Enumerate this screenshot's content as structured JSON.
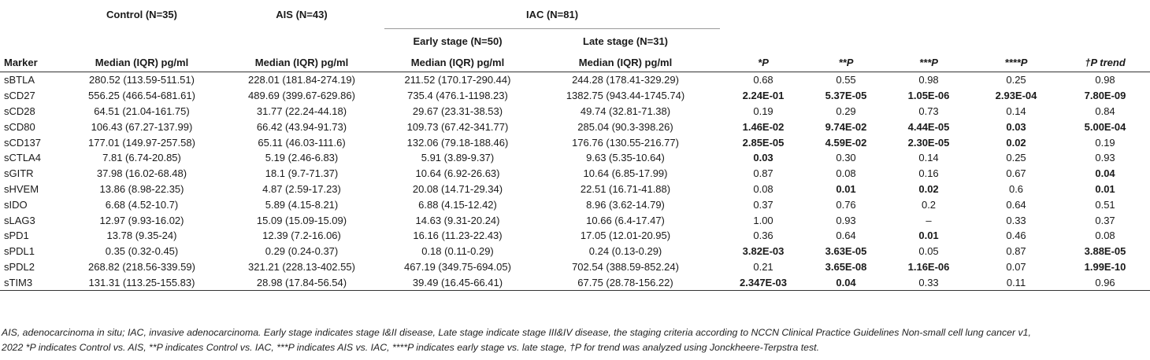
{
  "headers": {
    "control": "Control (N=35)",
    "ais": "AIS (N=43)",
    "iac": "IAC (N=81)",
    "early": "Early stage (N=50)",
    "late": "Late stage (N=31)",
    "marker": "Marker",
    "median": "Median (IQR) pg/ml",
    "p1": "*P",
    "p2": "**P",
    "p3": "***P",
    "p4": "****P",
    "ptrend": "†P trend"
  },
  "rows": [
    {
      "marker": "sBTLA",
      "control": "280.52 (113.59-511.51)",
      "ais": "228.01 (181.84-274.19)",
      "early": "211.52 (170.17-290.44)",
      "late": "244.28 (178.41-329.29)",
      "p1": "0.68",
      "p2": "0.55",
      "p3": "0.98",
      "p4": "0.25",
      "pt": "0.98",
      "bold": []
    },
    {
      "marker": "sCD27",
      "control": "556.25 (466.54-681.61)",
      "ais": "489.69 (399.67-629.86)",
      "early": "735.4 (476.1-1198.23)",
      "late": "1382.75 (943.44-1745.74)",
      "p1": "2.24E-01",
      "p2": "5.37E-05",
      "p3": "1.05E-06",
      "p4": "2.93E-04",
      "pt": "7.80E-09",
      "bold": [
        "p1",
        "p2",
        "p3",
        "p4",
        "pt"
      ]
    },
    {
      "marker": "sCD28",
      "control": "64.51 (21.04-161.75)",
      "ais": "31.77 (22.24-44.18)",
      "early": "29.67 (23.31-38.53)",
      "late": "49.74 (32.81-71.38)",
      "p1": "0.19",
      "p2": "0.29",
      "p3": "0.73",
      "p4": "0.14",
      "pt": "0.84",
      "bold": []
    },
    {
      "marker": "sCD80",
      "control": "106.43 (67.27-137.99)",
      "ais": "66.42 (43.94-91.73)",
      "early": "109.73 (67.42-341.77)",
      "late": "285.04 (90.3-398.26)",
      "p1": "1.46E-02",
      "p2": "9.74E-02",
      "p3": "4.44E-05",
      "p4": "0.03",
      "pt": "5.00E-04",
      "bold": [
        "p1",
        "p2",
        "p3",
        "p4",
        "pt"
      ]
    },
    {
      "marker": "sCD137",
      "control": "177.01 (149.97-257.58)",
      "ais": "65.11 (46.03-111.6)",
      "early": "132.06 (79.18-188.46)",
      "late": "176.76 (130.55-216.77)",
      "p1": "2.85E-05",
      "p2": "4.59E-02",
      "p3": "2.30E-05",
      "p4": "0.02",
      "pt": "0.19",
      "bold": [
        "p1",
        "p2",
        "p3",
        "p4"
      ]
    },
    {
      "marker": "sCTLA4",
      "control": "7.81 (6.74-20.85)",
      "ais": "5.19 (2.46-6.83)",
      "early": "5.91 (3.89-9.37)",
      "late": "9.63 (5.35-10.64)",
      "p1": "0.03",
      "p2": "0.30",
      "p3": "0.14",
      "p4": "0.25",
      "pt": "0.93",
      "bold": [
        "p1"
      ]
    },
    {
      "marker": "sGITR",
      "control": "37.98 (16.02-68.48)",
      "ais": "18.1 (9.7-71.37)",
      "early": "10.64 (6.92-26.63)",
      "late": "10.64 (6.85-17.99)",
      "p1": "0.87",
      "p2": "0.08",
      "p3": "0.16",
      "p4": "0.67",
      "pt": "0.04",
      "bold": [
        "pt"
      ]
    },
    {
      "marker": "sHVEM",
      "control": "13.86 (8.98-22.35)",
      "ais": "4.87 (2.59-17.23)",
      "early": "20.08 (14.71-29.34)",
      "late": "22.51 (16.71-41.88)",
      "p1": "0.08",
      "p2": "0.01",
      "p3": "0.02",
      "p4": "0.6",
      "pt": "0.01",
      "bold": [
        "p2",
        "p3",
        "pt"
      ]
    },
    {
      "marker": "sIDO",
      "control": "6.68 (4.52-10.7)",
      "ais": "5.89 (4.15-8.21)",
      "early": "6.88 (4.15-12.42)",
      "late": "8.96 (3.62-14.79)",
      "p1": "0.37",
      "p2": "0.76",
      "p3": "0.2",
      "p4": "0.64",
      "pt": "0.51",
      "bold": []
    },
    {
      "marker": "sLAG3",
      "control": "12.97 (9.93-16.02)",
      "ais": "15.09 (15.09-15.09)",
      "early": "14.63 (9.31-20.24)",
      "late": "10.66 (6.4-17.47)",
      "p1": "1.00",
      "p2": "0.93",
      "p3": "–",
      "p4": "0.33",
      "pt": "0.37",
      "bold": []
    },
    {
      "marker": "sPD1",
      "control": "13.78 (9.35-24)",
      "ais": "12.39 (7.2-16.06)",
      "early": "16.16 (11.23-22.43)",
      "late": "17.05 (12.01-20.95)",
      "p1": "0.36",
      "p2": "0.64",
      "p3": "0.01",
      "p4": "0.46",
      "pt": "0.08",
      "bold": [
        "p3"
      ]
    },
    {
      "marker": "sPDL1",
      "control": "0.35 (0.32-0.45)",
      "ais": "0.29 (0.24-0.37)",
      "early": "0.18 (0.11-0.29)",
      "late": "0.24 (0.13-0.29)",
      "p1": "3.82E-03",
      "p2": "3.63E-05",
      "p3": "0.05",
      "p4": "0.87",
      "pt": "3.88E-05",
      "bold": [
        "p1",
        "p2",
        "pt"
      ]
    },
    {
      "marker": "sPDL2",
      "control": "268.82 (218.56-339.59)",
      "ais": "321.21 (228.13-402.55)",
      "early": "467.19 (349.75-694.05)",
      "late": "702.54 (388.59-852.24)",
      "p1": "0.21",
      "p2": "3.65E-08",
      "p3": "1.16E-06",
      "p4": "0.07",
      "pt": "1.99E-10",
      "bold": [
        "p2",
        "p3",
        "pt"
      ]
    },
    {
      "marker": "sTIM3",
      "control": "131.31 (113.25-155.83)",
      "ais": "28.98 (17.84-56.54)",
      "early": "39.49 (16.45-66.41)",
      "late": "67.75 (28.78-156.22)",
      "p1": "2.347E-03",
      "p2": "0.04",
      "p3": "0.33",
      "p4": "0.11",
      "pt": "0.96",
      "bold": [
        "p1",
        "p2"
      ]
    }
  ],
  "footnote": {
    "line1": "AIS, adenocarcinoma in situ; IAC, invasive adenocarcinoma. Early stage indicates stage I&II disease, Late stage indicate stage III&IV disease, the staging criteria according to NCCN Clinical Practice Guidelines Non-small cell lung cancer v1,",
    "line2": "2022 *P indicates Control vs. AIS, **P indicates Control vs. IAC, ***P indicates AIS vs. IAC, ****P indicates early stage vs. late stage, †P for trend was analyzed using Jonckheere-Terpstra test."
  }
}
